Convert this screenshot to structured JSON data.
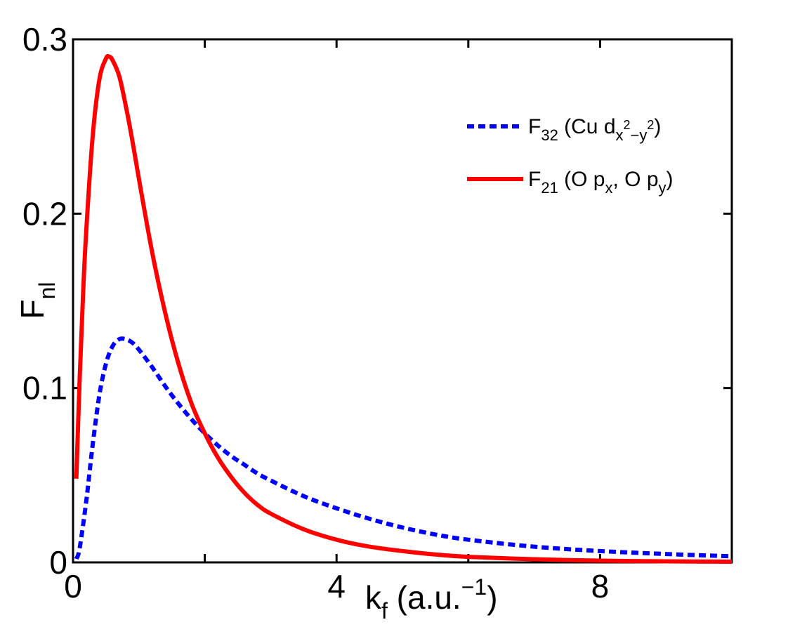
{
  "chart_data": {
    "type": "line",
    "xlabel": {
      "main": "k",
      "sub": "f",
      "rest": " (a.u.",
      "sup": "−1",
      "close": ")"
    },
    "ylabel": {
      "main": "F",
      "sub": "nl"
    },
    "xlim": [
      0,
      10
    ],
    "ylim": [
      0,
      0.3
    ],
    "x_ticks": [
      0,
      2,
      4,
      6,
      8,
      10
    ],
    "x_tick_labels": [
      "0",
      "",
      "4",
      "",
      "8",
      ""
    ],
    "y_ticks": [
      0,
      0.1,
      0.2,
      0.3
    ],
    "y_tick_labels": [
      "0",
      "0.1",
      "0.2",
      "0.3"
    ],
    "grid": false,
    "legend_position": "top-right",
    "series": [
      {
        "name": "F32 (Cu dx2−y2)",
        "label": {
          "main": "F",
          "sub": "32",
          "rest": " (Cu d",
          "sub2": "x",
          "sup": "2",
          "sub3": "−y",
          "sup2": "2",
          "close": ")"
        },
        "color": "#0000ff",
        "style": "dotted",
        "x": [
          0.05,
          0.1,
          0.2,
          0.3,
          0.4,
          0.5,
          0.6,
          0.7,
          0.8,
          0.9,
          1.0,
          1.2,
          1.4,
          1.6,
          1.8,
          2.0,
          2.2,
          2.4,
          2.6,
          2.8,
          3.0,
          3.5,
          4.0,
          4.5,
          5.0,
          5.5,
          6.0,
          7.0,
          8.0,
          9.0,
          10.0
        ],
        "y": [
          0.002,
          0.008,
          0.035,
          0.068,
          0.096,
          0.114,
          0.124,
          0.128,
          0.128,
          0.126,
          0.122,
          0.112,
          0.101,
          0.091,
          0.082,
          0.074,
          0.067,
          0.061,
          0.056,
          0.051,
          0.047,
          0.038,
          0.031,
          0.025,
          0.02,
          0.016,
          0.013,
          0.009,
          0.0065,
          0.0048,
          0.0035
        ]
      },
      {
        "name": "F21 (O px, O py)",
        "label": {
          "main": "F",
          "sub": "21",
          "rest": " (O p",
          "sub2": "x",
          "mid": ", O p",
          "sub3": "y",
          "close": ")"
        },
        "color": "#ff0000",
        "style": "solid",
        "x": [
          0.05,
          0.1,
          0.15,
          0.2,
          0.3,
          0.4,
          0.5,
          0.55,
          0.6,
          0.7,
          0.8,
          0.9,
          1.0,
          1.2,
          1.4,
          1.6,
          1.8,
          2.0,
          2.2,
          2.4,
          2.6,
          2.8,
          3.0,
          3.5,
          4.0,
          4.5,
          5.0,
          5.5,
          6.0,
          7.0,
          8.0,
          9.0,
          10.0
        ],
        "y": [
          0.048,
          0.105,
          0.152,
          0.19,
          0.245,
          0.277,
          0.289,
          0.29,
          0.288,
          0.279,
          0.262,
          0.242,
          0.22,
          0.178,
          0.143,
          0.114,
          0.091,
          0.074,
          0.06,
          0.049,
          0.04,
          0.033,
          0.028,
          0.019,
          0.013,
          0.009,
          0.0065,
          0.0045,
          0.0032,
          0.0018,
          0.001,
          0.0006,
          0.0004
        ]
      }
    ]
  }
}
